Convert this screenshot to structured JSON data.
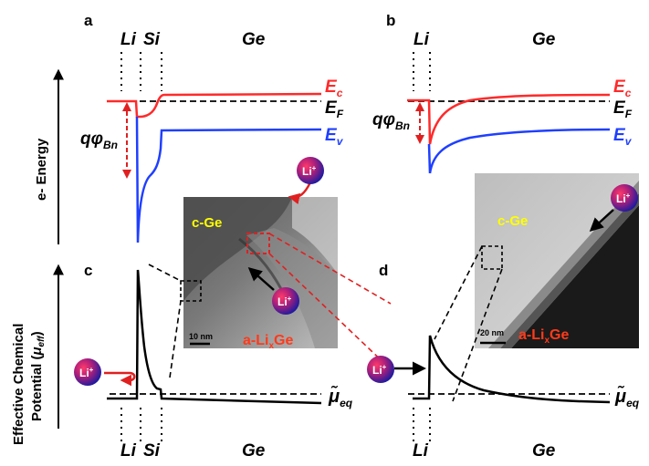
{
  "panels": {
    "a": "a",
    "b": "b",
    "c": "c",
    "d": "d"
  },
  "regions": {
    "li": "Li",
    "si": "Si",
    "ge": "Ge"
  },
  "band_labels": {
    "ec_E": "E",
    "ec_sub": "c",
    "ef_E": "E",
    "ef_sub": "F",
    "ev_E": "E",
    "ev_sub": "v"
  },
  "barrier": {
    "main": "qφ",
    "sub": "Bn"
  },
  "axes": {
    "energy_label": "e- Energy",
    "potential_line1": "Effective Chemical",
    "potential_line2_prefix": "Potential (",
    "potential_mu": "μ",
    "potential_sub": "eff",
    "potential_close": ")"
  },
  "mu_eq": {
    "symbol": "μ̃",
    "sub": "eq"
  },
  "ion": {
    "symbol": "Li",
    "charge": "+"
  },
  "micrographs": {
    "left": {
      "crystal": "c-Ge",
      "amorphous_prefix": "a-Li",
      "amorphous_sub": "x",
      "amorphous_suffix": "Ge",
      "scale": "10 nm"
    },
    "right": {
      "crystal": "c-Ge",
      "amorphous_prefix": "a-Li",
      "amorphous_sub": "x",
      "amorphous_suffix": "Ge",
      "scale": "20 nm"
    }
  },
  "colors": {
    "conduction_band": "#ff2a2a",
    "valence_band": "#1f3fff",
    "fermi_level": "#000000",
    "crystal_label": "#ffff00",
    "amorphous_label": "#ff3a1a",
    "annotation_red": "#e02020"
  }
}
